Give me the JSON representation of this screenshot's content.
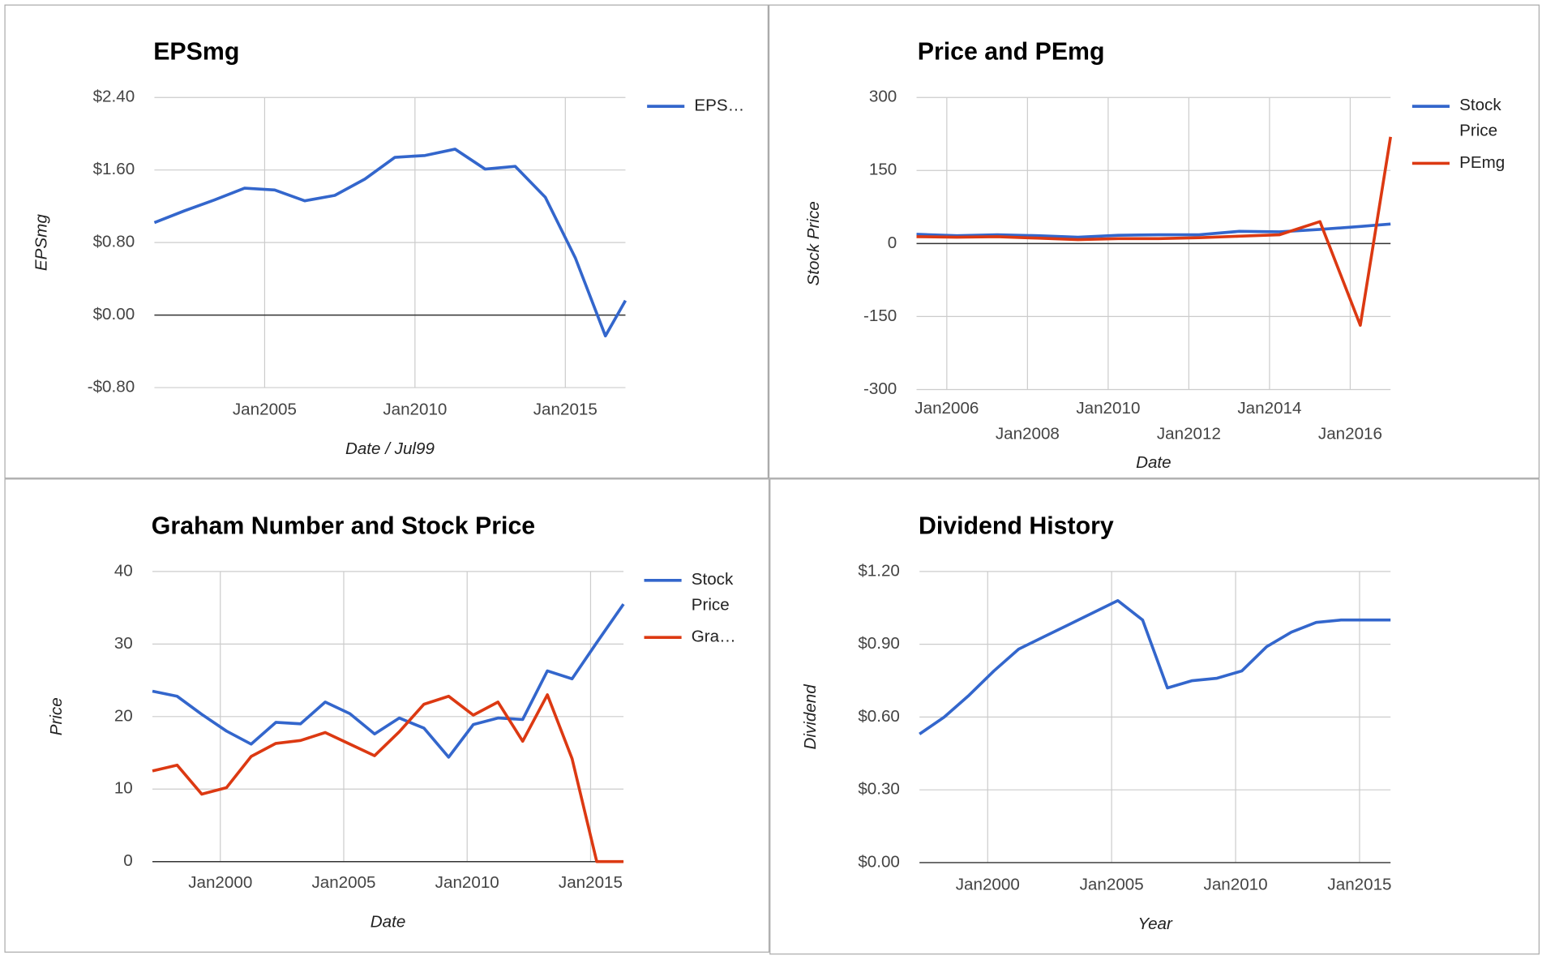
{
  "chart_data": [
    {
      "type": "line",
      "title": "EPSmg",
      "x_label": "Date / Jul99",
      "y_label": "EPSmg",
      "x": [
        "2001-05",
        "2002-05",
        "2003-05",
        "2004-05",
        "2005-05",
        "2006-05",
        "2007-05",
        "2008-05",
        "2009-05",
        "2010-05",
        "2011-05",
        "2012-05",
        "2013-05",
        "2014-05",
        "2015-05",
        "2016-05",
        "2017-01"
      ],
      "series": [
        {
          "name": "EPS…",
          "color": "#3366cc",
          "values": [
            1.02,
            1.15,
            1.27,
            1.4,
            1.38,
            1.26,
            1.32,
            1.5,
            1.74,
            1.76,
            1.83,
            1.61,
            1.64,
            1.3,
            0.63,
            -0.23,
            0.16
          ]
        }
      ],
      "xlim": [
        "2001-05",
        "2017-01"
      ],
      "xticks": [
        {
          "value": "2005-01",
          "label": "Jan2005"
        },
        {
          "value": "2010-01",
          "label": "Jan2010"
        },
        {
          "value": "2015-01",
          "label": "Jan2015"
        }
      ],
      "ylim": [
        -0.8,
        2.4
      ],
      "yticks": [
        {
          "value": -0.8,
          "label": "-$0.80"
        },
        {
          "value": 0,
          "label": "$0.00"
        },
        {
          "value": 0.8,
          "label": "$0.80"
        },
        {
          "value": 1.6,
          "label": "$1.60"
        },
        {
          "value": 2.4,
          "label": "$2.40"
        }
      ],
      "grid": true,
      "legend": "right"
    },
    {
      "type": "line",
      "title": "Price and PEmg",
      "x_label": "Date",
      "y_label": "Stock Price",
      "x": [
        "2005-04",
        "2006-04",
        "2007-04",
        "2008-04",
        "2009-04",
        "2010-04",
        "2011-04",
        "2012-04",
        "2013-04",
        "2014-04",
        "2015-04",
        "2016-04",
        "2017-01"
      ],
      "series": [
        {
          "name": "Stock Price",
          "color": "#3366cc",
          "values": [
            19,
            16,
            18,
            16,
            13,
            17,
            18,
            18,
            25,
            24,
            29,
            35,
            40
          ]
        },
        {
          "name": "PEmg",
          "color": "#dc3912",
          "values": [
            14,
            13,
            14,
            11,
            8,
            10,
            10,
            12,
            15,
            18,
            45,
            -168,
            219
          ]
        }
      ],
      "xlim": [
        "2005-04",
        "2017-01"
      ],
      "xticks": [
        {
          "value": "2006-01",
          "label": "Jan2006"
        },
        {
          "value": "2008-01",
          "label": "Jan2008"
        },
        {
          "value": "2010-01",
          "label": "Jan2010"
        },
        {
          "value": "2012-01",
          "label": "Jan2012"
        },
        {
          "value": "2014-01",
          "label": "Jan2014"
        },
        {
          "value": "2016-01",
          "label": "Jan2016"
        }
      ],
      "ylim": [
        -300,
        300
      ],
      "yticks": [
        -300,
        -150,
        0,
        150,
        300
      ],
      "grid": true,
      "legend": "right"
    },
    {
      "type": "line",
      "title": "Graham Number and Stock Price",
      "x_label": "Date",
      "y_label": "Price",
      "x": [
        "1997-04",
        "1998-04",
        "1999-04",
        "2000-04",
        "2001-04",
        "2002-04",
        "2003-04",
        "2004-04",
        "2005-04",
        "2006-04",
        "2007-04",
        "2008-04",
        "2009-04",
        "2010-04",
        "2011-04",
        "2012-04",
        "2013-04",
        "2014-04",
        "2015-04",
        "2016-05"
      ],
      "series": [
        {
          "name": "Stock Price",
          "color": "#3366cc",
          "values": [
            23.5,
            22.8,
            20.3,
            18,
            16.2,
            19.2,
            19,
            22,
            20.4,
            17.6,
            19.8,
            18.4,
            14.4,
            18.9,
            19.8,
            19.6,
            26.3,
            25.2,
            30.2,
            35.5
          ]
        },
        {
          "name": "Gra…",
          "color": "#dc3912",
          "values": [
            12.5,
            13.3,
            9.3,
            10.2,
            14.5,
            16.3,
            16.7,
            17.8,
            16.2,
            14.6,
            17.9,
            21.7,
            22.8,
            20.2,
            22,
            16.6,
            23,
            14.2,
            0,
            0
          ]
        }
      ],
      "xlim": [
        "1997-04",
        "2016-05"
      ],
      "xticks": [
        {
          "value": "2000-01",
          "label": "Jan2000"
        },
        {
          "value": "2005-01",
          "label": "Jan2005"
        },
        {
          "value": "2010-01",
          "label": "Jan2010"
        },
        {
          "value": "2015-01",
          "label": "Jan2015"
        }
      ],
      "ylim": [
        0,
        40
      ],
      "yticks": [
        0,
        10,
        20,
        30,
        40
      ],
      "grid": true,
      "legend": "right"
    },
    {
      "type": "line",
      "title": "Dividend History",
      "x_label": "Year",
      "y_label": "Dividend",
      "x": [
        "1997-04",
        "1998-04",
        "1999-04",
        "2000-04",
        "2001-04",
        "2002-04",
        "2003-04",
        "2004-04",
        "2005-04",
        "2006-04",
        "2007-04",
        "2008-04",
        "2009-04",
        "2010-04",
        "2011-04",
        "2012-04",
        "2013-04",
        "2014-04",
        "2015-04",
        "2016-04"
      ],
      "series": [
        {
          "name": "Dividend",
          "color": "#3366cc",
          "values": [
            0.53,
            0.6,
            0.69,
            0.79,
            0.88,
            0.93,
            0.98,
            1.03,
            1.08,
            1.0,
            0.72,
            0.75,
            0.76,
            0.79,
            0.89,
            0.95,
            0.99,
            1.0,
            1.0,
            1.0
          ]
        }
      ],
      "xlim": [
        "1997-04",
        "2016-04"
      ],
      "xticks": [
        {
          "value": "2000-01",
          "label": "Jan2000"
        },
        {
          "value": "2005-01",
          "label": "Jan2005"
        },
        {
          "value": "2010-01",
          "label": "Jan2010"
        },
        {
          "value": "2015-01",
          "label": "Jan2015"
        }
      ],
      "ylim": [
        0,
        1.2
      ],
      "yticks": [
        {
          "value": 0,
          "label": "$0.00"
        },
        {
          "value": 0.3,
          "label": "$0.30"
        },
        {
          "value": 0.6,
          "label": "$0.60"
        },
        {
          "value": 0.9,
          "label": "$0.90"
        },
        {
          "value": 1.2,
          "label": "$1.20"
        }
      ],
      "grid": true
    }
  ]
}
